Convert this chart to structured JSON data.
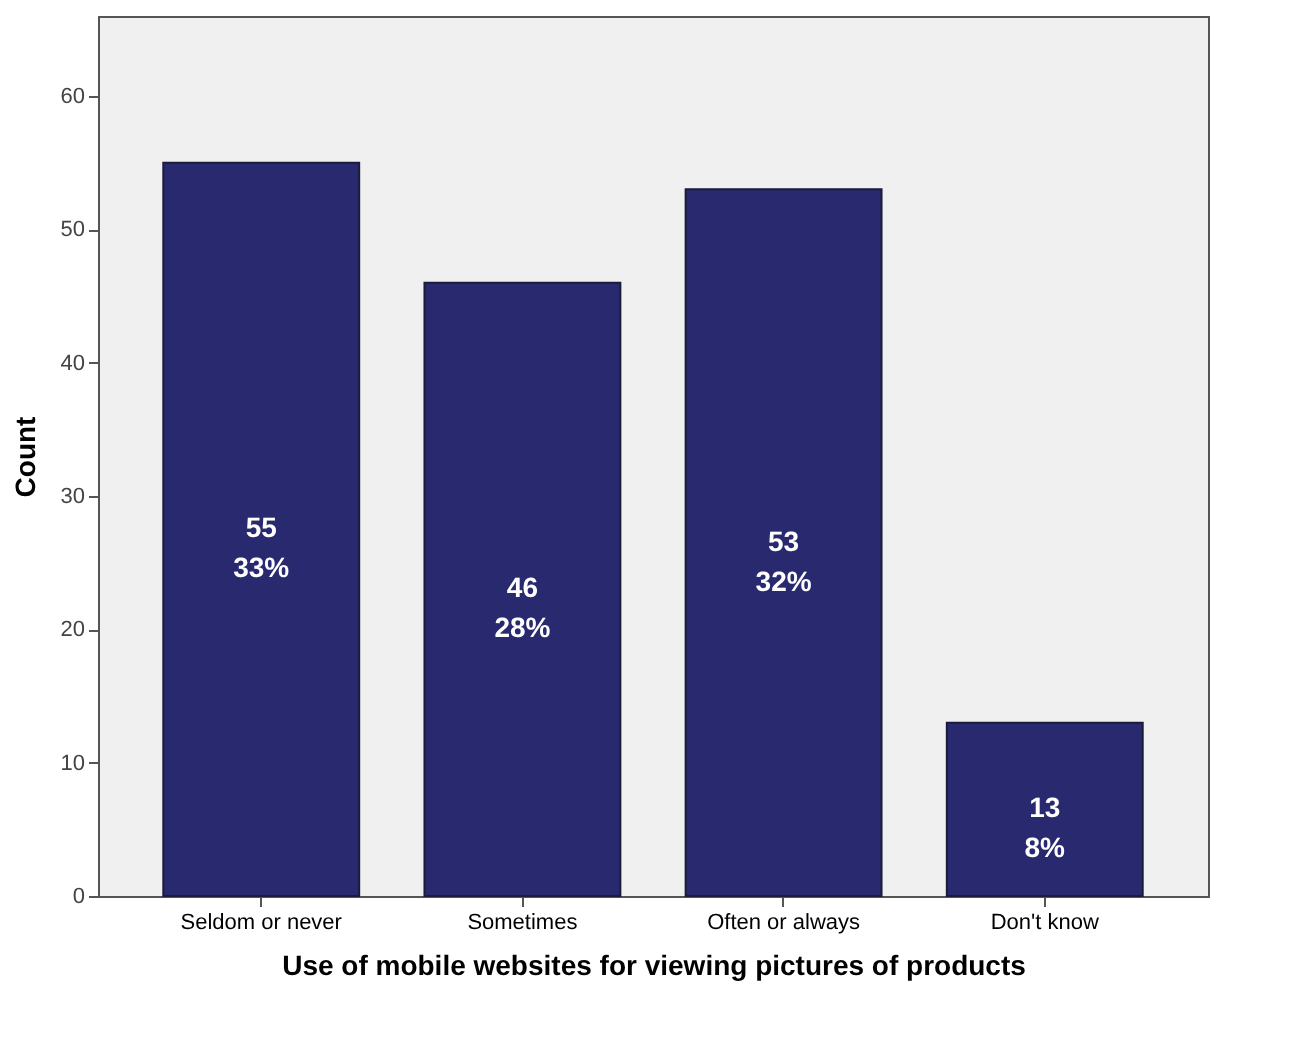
{
  "chart_data": {
    "type": "bar",
    "xlabel": "Use of mobile websites for viewing pictures of products",
    "ylabel": "Count",
    "categories": [
      "Seldom or never",
      "Sometimes",
      "Often or always",
      "Don't know"
    ],
    "values": [
      55,
      46,
      53,
      13
    ],
    "value_labels": [
      "55\n33%",
      "46\n28%",
      "53\n32%",
      "13\n8%"
    ],
    "color": "#29296f",
    "ylim": [
      0,
      66
    ],
    "yticks": [
      0,
      10,
      20,
      30,
      40,
      50,
      60
    ],
    "grid": false
  }
}
